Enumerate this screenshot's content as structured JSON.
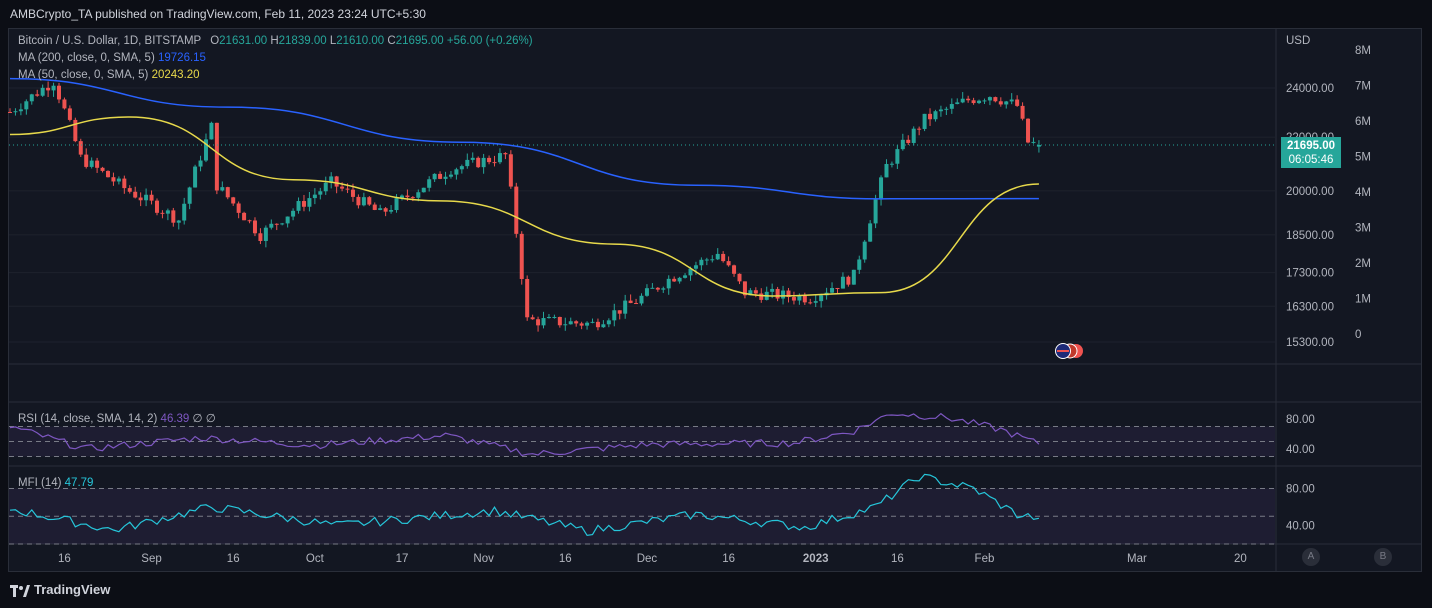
{
  "header": {
    "publisher": "AMBCrypto_TA published on TradingView.com, Feb 11, 2023 23:24 UTC+5:30"
  },
  "legend": {
    "symbol": "Bitcoin / U.S. Dollar, 1D, BITSTAMP",
    "open_label": "O",
    "open": "21631.00",
    "high_label": "H",
    "high": "21839.00",
    "low_label": "L",
    "low": "21610.00",
    "close_label": "C",
    "close": "21695.00",
    "change": "+56.00 (+0.26%)",
    "ma200_label": "MA (200, close, 0, SMA, 5)",
    "ma200_value": "19726.15",
    "ma50_label": "MA (50, close, 0, SMA, 5)",
    "ma50_value": "20243.20",
    "rsi_label": "RSI (14, close, SMA, 14, 2)",
    "rsi_value": "46.39",
    "rsi_extra": "∅ ∅",
    "mfi_label": "MFI (14)",
    "mfi_value": "47.79"
  },
  "price_scale": {
    "currency": "USD",
    "ticks": [
      "24000.00",
      "22000.00",
      "20000.00",
      "18500.00",
      "17300.00",
      "16300.00",
      "15300.00"
    ],
    "last_price": "21695.00",
    "countdown": "06:05:46"
  },
  "volume_scale": {
    "ticks": [
      "8M",
      "7M",
      "6M",
      "5M",
      "4M",
      "3M",
      "2M",
      "1M",
      "0"
    ]
  },
  "rsi_scale": {
    "ticks": [
      "80.00",
      "40.00"
    ]
  },
  "mfi_scale": {
    "ticks": [
      "80.00",
      "40.00"
    ]
  },
  "time_axis": {
    "labels": [
      "16",
      "Sep",
      "16",
      "Oct",
      "17",
      "Nov",
      "16",
      "Dec",
      "16",
      "2023",
      "16",
      "Feb",
      "Mar",
      "20"
    ]
  },
  "buttons": {
    "a": "A",
    "b": "B"
  },
  "footer": {
    "brand": "TradingView"
  },
  "colors": {
    "up": "#26a69a",
    "down": "#ef5350",
    "ma200": "#2962ff",
    "ma50": "#e7d94b",
    "rsi": "#7e57c2",
    "mfi": "#26c6da",
    "background": "#131722"
  },
  "chart_data": [
    {
      "type": "candlestick",
      "title": "Bitcoin / U.S. Dollar, 1D, BITSTAMP",
      "x_range": [
        "2022-08-06",
        "2023-02-11"
      ],
      "y_axis": "log",
      "ylim": [
        15300,
        24000
      ],
      "anchors": [
        [
          "2022-08-06",
          23000
        ],
        [
          "2022-08-14",
          24300
        ],
        [
          "2022-08-19",
          21200
        ],
        [
          "2022-08-27",
          20100
        ],
        [
          "2022-09-06",
          19000
        ],
        [
          "2022-09-12",
          22400
        ],
        [
          "2022-09-13",
          20200
        ],
        [
          "2022-09-21",
          18500
        ],
        [
          "2022-10-04",
          20300
        ],
        [
          "2022-10-13",
          19200
        ],
        [
          "2022-10-26",
          20800
        ],
        [
          "2022-11-05",
          21300
        ],
        [
          "2022-11-09",
          15900
        ],
        [
          "2022-11-21",
          15800
        ],
        [
          "2022-11-29",
          16450
        ],
        [
          "2022-12-05",
          17100
        ],
        [
          "2022-12-14",
          17900
        ],
        [
          "2022-12-19",
          16700
        ],
        [
          "2022-12-31",
          16550
        ],
        [
          "2023-01-08",
          17200
        ],
        [
          "2023-01-14",
          20900
        ],
        [
          "2023-01-21",
          22700
        ],
        [
          "2023-01-29",
          23500
        ],
        [
          "2023-02-02",
          23700
        ],
        [
          "2023-02-07",
          23250
        ],
        [
          "2023-02-09",
          21800
        ],
        [
          "2023-02-11",
          21695
        ]
      ],
      "last": {
        "open": 21631,
        "high": 21839,
        "low": 21610,
        "close": 21695
      }
    },
    {
      "type": "line",
      "series": [
        {
          "name": "MA (200, close, 0, SMA, 5)",
          "x": [
            "2022-08-06",
            "2022-09-15",
            "2022-10-28",
            "2022-12-10",
            "2023-01-13",
            "2023-02-11"
          ],
          "values": [
            24400,
            23200,
            21800,
            20200,
            19720,
            19726.15
          ]
        },
        {
          "name": "MA (50, close, 0, SMA, 5)",
          "x": [
            "2022-08-06",
            "2022-08-28",
            "2022-09-27",
            "2022-10-24",
            "2022-11-25",
            "2022-12-24",
            "2023-01-13",
            "2023-02-11"
          ],
          "values": [
            22100,
            22800,
            20400,
            19650,
            18200,
            16600,
            16700,
            20243.2
          ]
        }
      ]
    },
    {
      "type": "line",
      "title": "RSI (14, close, SMA, 14, 2)",
      "ylim": [
        20,
        100
      ],
      "bands": [
        30,
        50,
        70
      ],
      "series": [
        {
          "name": "RSI",
          "x": [
            "2022-08-06",
            "2022-08-20",
            "2022-09-10",
            "2022-10-01",
            "2022-10-25",
            "2022-11-10",
            "2022-12-01",
            "2022-12-28",
            "2023-01-08",
            "2023-01-15",
            "2023-01-25",
            "2023-02-04",
            "2023-02-11"
          ],
          "values": [
            70,
            40,
            55,
            45,
            58,
            33,
            46,
            48,
            64,
            88,
            82,
            66,
            46.39
          ]
        }
      ]
    },
    {
      "type": "line",
      "title": "MFI (14)",
      "ylim": [
        20,
        100
      ],
      "bands": [
        20,
        50,
        80
      ],
      "series": [
        {
          "name": "MFI",
          "x": [
            "2022-08-06",
            "2022-08-25",
            "2022-09-12",
            "2022-10-05",
            "2022-11-03",
            "2022-11-20",
            "2022-12-10",
            "2022-12-30",
            "2023-01-12",
            "2023-01-20",
            "2023-01-30",
            "2023-02-07",
            "2023-02-11"
          ],
          "values": [
            58,
            35,
            60,
            40,
            56,
            34,
            52,
            38,
            60,
            93,
            80,
            52,
            47.79
          ]
        }
      ]
    }
  ]
}
